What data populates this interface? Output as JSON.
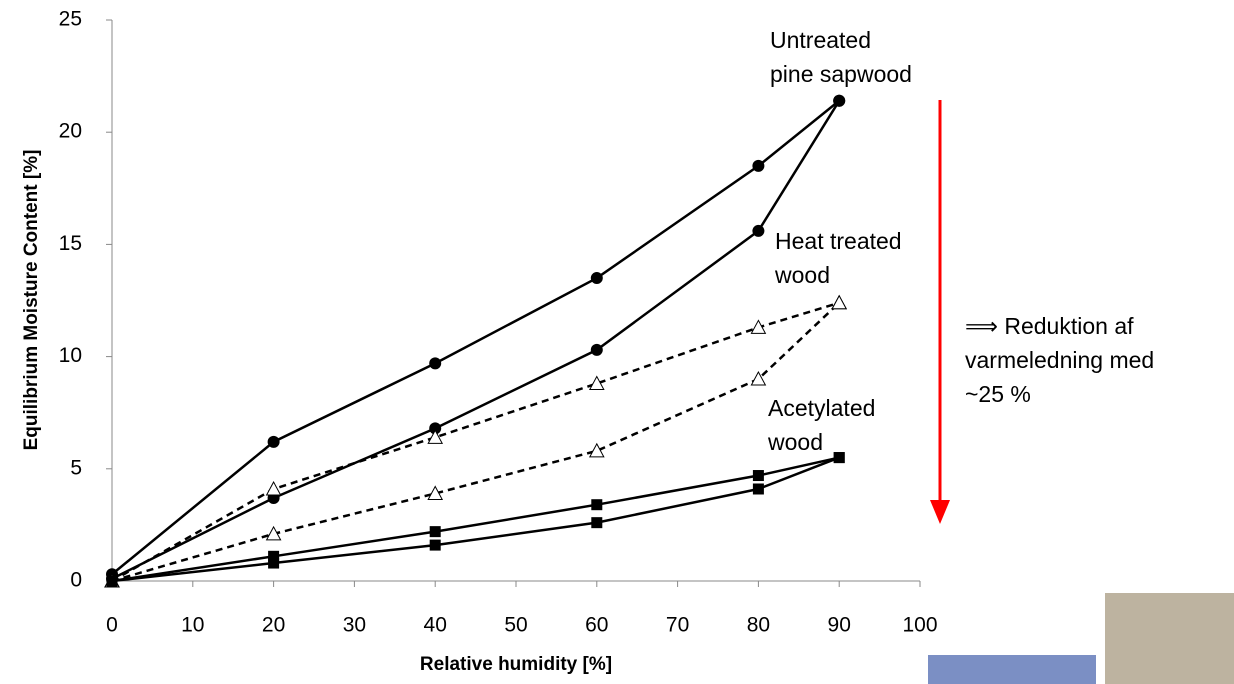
{
  "chart_data": {
    "type": "line",
    "x_label": "Relative humidity [%]",
    "y_label": "Equilibrium Moisture Content [%]",
    "x": [
      0,
      20,
      40,
      60,
      80,
      90
    ],
    "series": [
      {
        "color": "#000000",
        "marker": "circle",
        "dashed": false,
        "values": [
          0.3,
          6.2,
          9.7,
          13.5,
          18.5,
          21.4
        ]
      },
      {
        "color": "#000000",
        "marker": "circle",
        "dashed": false,
        "values": [
          0.1,
          3.7,
          6.8,
          10.3,
          15.6,
          21.4
        ]
      },
      {
        "color": "#000000",
        "marker": "triangle",
        "dashed": true,
        "values": [
          0,
          4.1,
          6.4,
          8.8,
          11.3,
          12.4
        ]
      },
      {
        "color": "#000000",
        "marker": "triangle",
        "dashed": true,
        "values": [
          0,
          2.1,
          3.9,
          5.8,
          9.0,
          12.4
        ]
      },
      {
        "color": "#000000",
        "marker": "square",
        "dashed": false,
        "values": [
          0,
          1.1,
          2.2,
          3.4,
          4.7,
          5.5
        ]
      },
      {
        "color": "#000000",
        "marker": "square",
        "dashed": false,
        "values": [
          0,
          0.8,
          1.6,
          2.6,
          4.1,
          5.5
        ]
      }
    ],
    "annotations": [
      {
        "lines": [
          "Untreated",
          "pine sapwood"
        ]
      },
      {
        "lines": [
          "Heat treated",
          "wood"
        ]
      },
      {
        "lines": [
          "Acetylated",
          "wood"
        ]
      },
      {
        "lines": [
          "⟹ Reduktion af",
          "varmeledning med",
          "~25 %"
        ]
      }
    ],
    "arrow_color": "#ff0000",
    "xlim": [
      0,
      100
    ],
    "xticks": [
      0,
      10,
      20,
      30,
      40,
      50,
      60,
      70,
      80,
      90,
      100
    ],
    "ylim": [
      0,
      25
    ],
    "yticks": [
      0,
      5,
      10,
      15,
      20,
      25
    ],
    "grid": false
  }
}
